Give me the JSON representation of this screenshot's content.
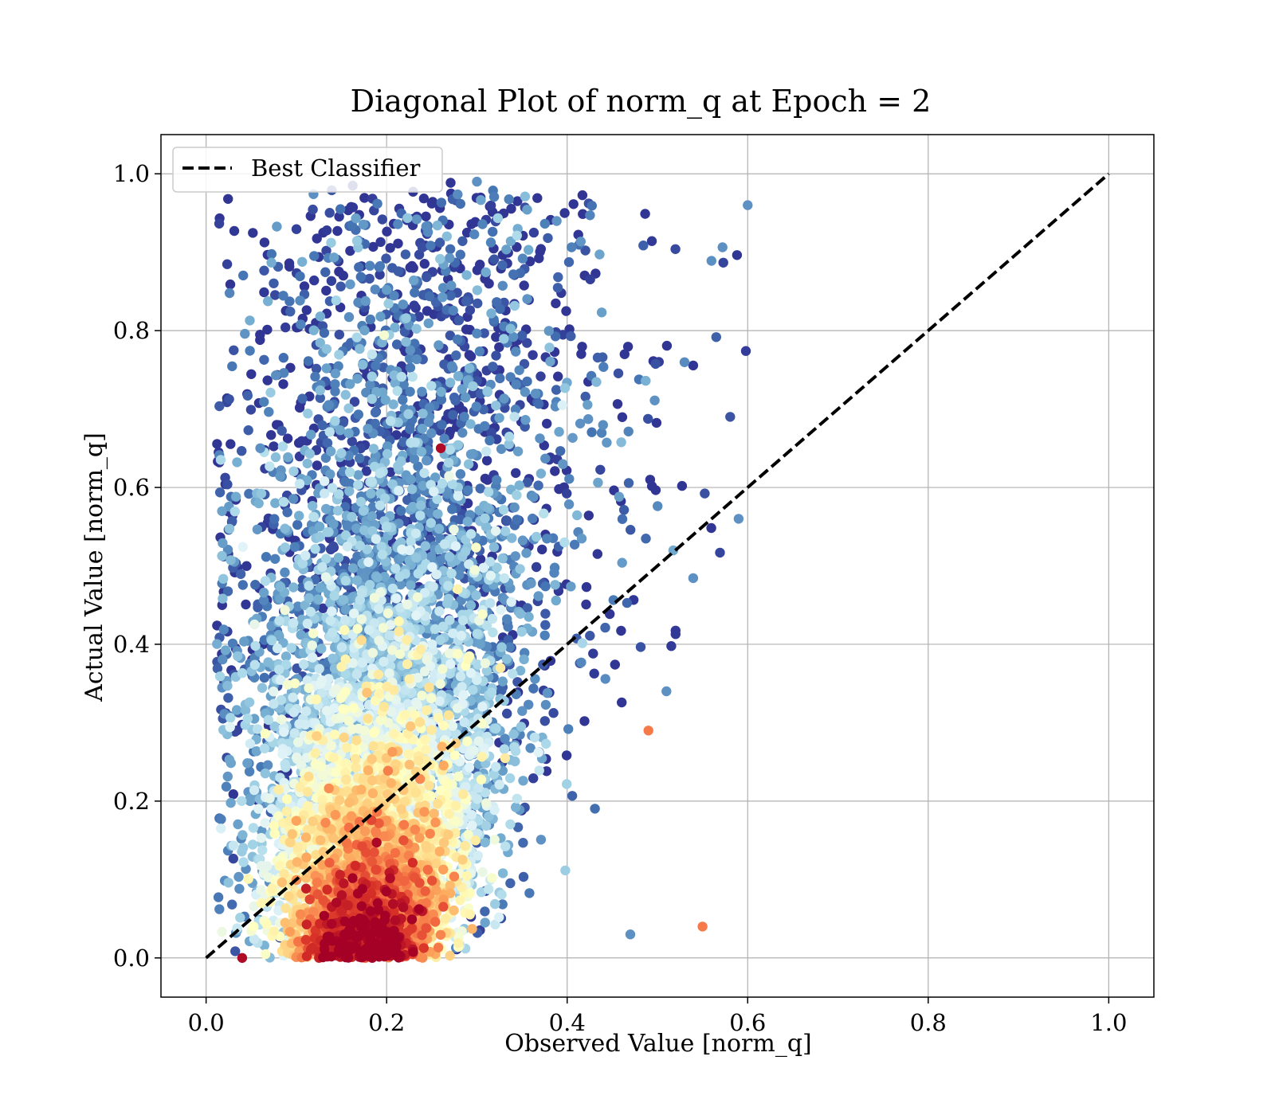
{
  "chart_data": {
    "type": "scatter",
    "title": "Diagonal Plot of norm_q at Epoch = 2",
    "xlabel": "Observed Value [norm_q]",
    "ylabel": "Actual Value [norm_q]",
    "xlim": [
      -0.05,
      1.05
    ],
    "ylim": [
      -0.05,
      1.05
    ],
    "xticks": [
      "0.0",
      "0.2",
      "0.4",
      "0.6",
      "0.8",
      "1.0"
    ],
    "yticks": [
      "0.0",
      "0.2",
      "0.4",
      "0.6",
      "0.8",
      "1.0"
    ],
    "grid": true,
    "colormap": "RdYlBu (red = dense, blue = sparse)",
    "legend": {
      "placement": "top-left",
      "entries": [
        "Best Classifier"
      ]
    },
    "reference_line": {
      "name": "Best Classifier",
      "style": "dashed",
      "color": "#000000",
      "x": [
        0.0,
        1.0
      ],
      "y": [
        0.0,
        1.0
      ]
    },
    "scatter_summary": {
      "x_range": [
        0.01,
        0.6
      ],
      "y_range": [
        0.0,
        0.99
      ],
      "density_peak": [
        0.17,
        0.08
      ],
      "note": "thousands of points colored by local density"
    },
    "sample_points": [
      {
        "x": 0.06,
        "y": 0.65
      },
      {
        "x": 0.3,
        "y": 0.99
      },
      {
        "x": 0.6,
        "y": 0.96
      },
      {
        "x": 0.55,
        "y": 0.04
      },
      {
        "x": 0.26,
        "y": 0.65
      },
      {
        "x": 0.51,
        "y": 0.34
      },
      {
        "x": 0.59,
        "y": 0.56
      },
      {
        "x": 0.47,
        "y": 0.03
      },
      {
        "x": 0.49,
        "y": 0.29
      },
      {
        "x": 0.04,
        "y": 0.0
      }
    ]
  }
}
